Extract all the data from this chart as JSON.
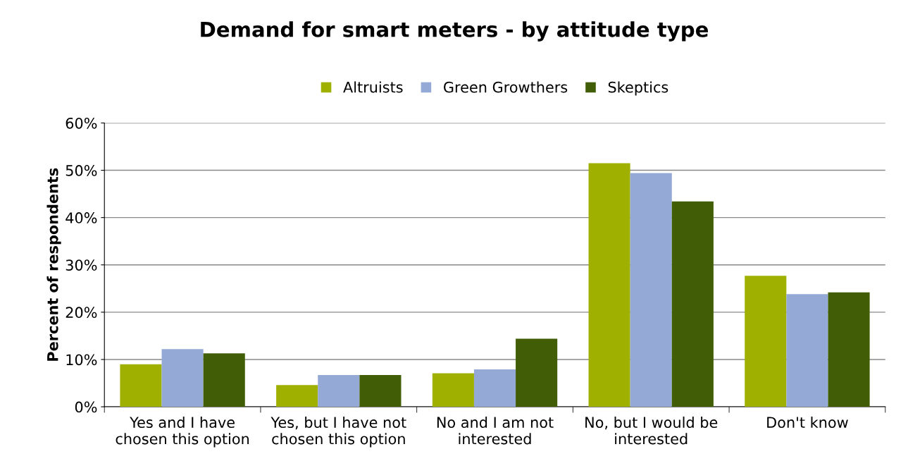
{
  "chart_data": {
    "type": "bar",
    "title": "Demand for smart meters - by attitude type",
    "ylabel": "Percent of respondents",
    "categories": [
      "Yes and I have\nchosen this option",
      "Yes, but I have not\nchosen this option",
      "No and I am not\ninterested",
      "No, but I would be\ninterested",
      "Don't know"
    ],
    "series": [
      {
        "name": "Altruists",
        "color": "#9fb000",
        "values": [
          9.0,
          4.6,
          7.1,
          51.5,
          27.7
        ]
      },
      {
        "name": "Green Growthers",
        "color": "#95a9d6",
        "values": [
          12.2,
          6.7,
          7.9,
          49.4,
          23.8
        ]
      },
      {
        "name": "Skeptics",
        "color": "#415e07",
        "values": [
          11.3,
          6.7,
          14.4,
          43.4,
          24.2
        ]
      }
    ],
    "ylim": [
      0,
      60
    ],
    "yticks": [
      {
        "value": 0,
        "label": "0%"
      },
      {
        "value": 10,
        "label": "10%"
      },
      {
        "value": 20,
        "label": "20%"
      },
      {
        "value": 30,
        "label": "30%"
      },
      {
        "value": 40,
        "label": "40%"
      },
      {
        "value": 50,
        "label": "50%"
      },
      {
        "value": 60,
        "label": "60%"
      }
    ],
    "grid": "y",
    "legend": "top"
  }
}
